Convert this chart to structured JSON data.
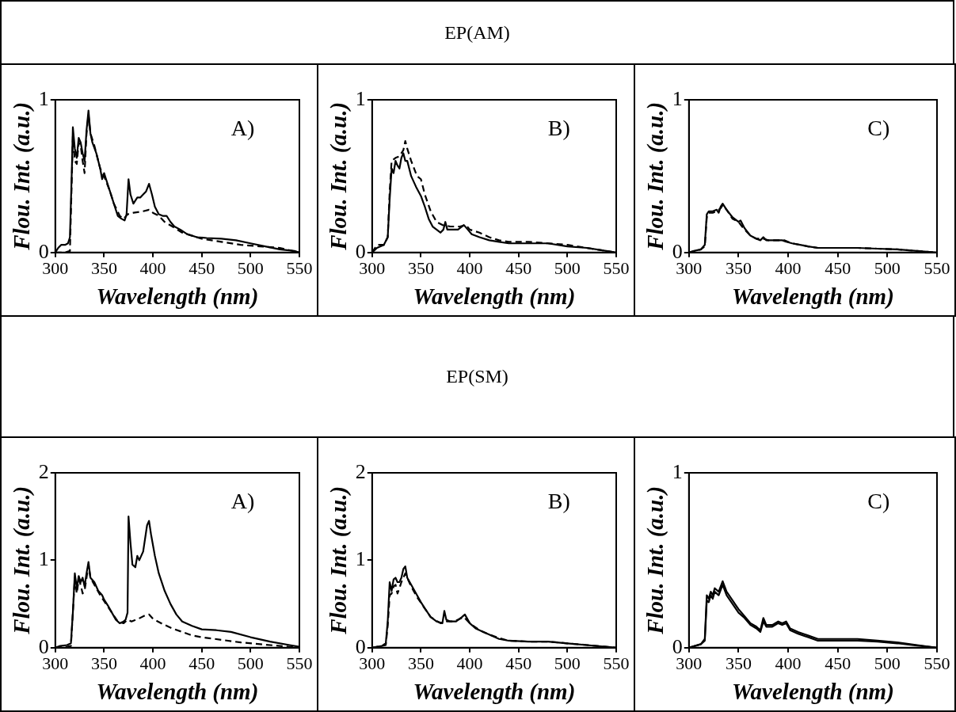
{
  "chart_data": [
    {
      "type": "other",
      "title": "EP(AM)"
    },
    {
      "type": "line",
      "xlabel": "Wavelength (nm)",
      "ylabel": "Flou. Int. (a.u.)",
      "annotations": [
        "A)"
      ],
      "xlim": [
        300,
        550
      ],
      "xticks": [
        300,
        350,
        400,
        450,
        500,
        550
      ],
      "ylim": [
        0,
        1
      ],
      "yticks": [
        0,
        1
      ],
      "grid": false,
      "legend": false,
      "marker": "none",
      "series": [
        {
          "color": "#000000",
          "line_style": "solid",
          "x": [
            300,
            303,
            306,
            310,
            313,
            315,
            317,
            318,
            320,
            322,
            324,
            326,
            328,
            330,
            332,
            334,
            336,
            338,
            342,
            346,
            348,
            350,
            352,
            356,
            360,
            364,
            368,
            371,
            373,
            375,
            377,
            380,
            384,
            387,
            390,
            393,
            396,
            399,
            402,
            406,
            410,
            414,
            418,
            422,
            428,
            435,
            445,
            455,
            470,
            485,
            500,
            515,
            530,
            545,
            550
          ],
          "values": [
            0,
            0.03,
            0.05,
            0.05,
            0.06,
            0.1,
            0.55,
            0.82,
            0.68,
            0.62,
            0.75,
            0.72,
            0.65,
            0.6,
            0.8,
            0.93,
            0.78,
            0.72,
            0.65,
            0.55,
            0.48,
            0.52,
            0.48,
            0.4,
            0.32,
            0.24,
            0.22,
            0.21,
            0.25,
            0.48,
            0.38,
            0.32,
            0.36,
            0.36,
            0.38,
            0.4,
            0.45,
            0.38,
            0.3,
            0.25,
            0.24,
            0.24,
            0.2,
            0.17,
            0.15,
            0.12,
            0.1,
            0.095,
            0.09,
            0.08,
            0.06,
            0.04,
            0.02,
            0.01,
            0
          ]
        },
        {
          "color": "#000000",
          "line_style": "dashed",
          "x": [
            300,
            310,
            315,
            317,
            318,
            320,
            322,
            324,
            326,
            328,
            330,
            332,
            334,
            336,
            340,
            346,
            350,
            356,
            360,
            366,
            370,
            374,
            380,
            390,
            396,
            400,
            406,
            412,
            420,
            430,
            440,
            450,
            470,
            490,
            510,
            530,
            550
          ],
          "values": [
            0,
            0,
            0.01,
            0.5,
            0.76,
            0.6,
            0.58,
            0.72,
            0.7,
            0.6,
            0.52,
            0.78,
            0.9,
            0.78,
            0.7,
            0.55,
            0.5,
            0.4,
            0.32,
            0.24,
            0.22,
            0.25,
            0.26,
            0.27,
            0.28,
            0.26,
            0.24,
            0.2,
            0.17,
            0.13,
            0.11,
            0.09,
            0.07,
            0.05,
            0.04,
            0.03,
            0
          ]
        }
      ]
    },
    {
      "type": "line",
      "xlabel": "Wavelength (nm)",
      "ylabel": "Flou. Int. (a.u.)",
      "annotations": [
        "B)"
      ],
      "xlim": [
        300,
        550
      ],
      "xticks": [
        300,
        350,
        400,
        450,
        500,
        550
      ],
      "ylim": [
        0,
        1
      ],
      "yticks": [
        0,
        1
      ],
      "grid": false,
      "legend": false,
      "marker": "none",
      "series": [
        {
          "color": "#000000",
          "line_style": "solid",
          "x": [
            300,
            305,
            312,
            316,
            318,
            320,
            322,
            324,
            326,
            328,
            330,
            332,
            334,
            336,
            340,
            345,
            350,
            354,
            358,
            362,
            366,
            370,
            373,
            375,
            377,
            382,
            388,
            394,
            398,
            402,
            410,
            420,
            430,
            440,
            460,
            480,
            500,
            520,
            540,
            550
          ],
          "values": [
            0,
            0.03,
            0.05,
            0.1,
            0.35,
            0.55,
            0.52,
            0.6,
            0.57,
            0.55,
            0.62,
            0.65,
            0.6,
            0.6,
            0.5,
            0.43,
            0.37,
            0.3,
            0.22,
            0.17,
            0.15,
            0.13,
            0.15,
            0.2,
            0.15,
            0.15,
            0.15,
            0.18,
            0.15,
            0.12,
            0.1,
            0.08,
            0.07,
            0.06,
            0.06,
            0.06,
            0.04,
            0.03,
            0.01,
            0
          ]
        },
        {
          "color": "#000000",
          "line_style": "dashed",
          "x": [
            300,
            305,
            312,
            316,
            318,
            320,
            324,
            328,
            332,
            334,
            336,
            340,
            346,
            350,
            354,
            360,
            366,
            372,
            380,
            390,
            396,
            400,
            410,
            420,
            430,
            440,
            460,
            480,
            500,
            520,
            540,
            550
          ],
          "values": [
            0,
            0.05,
            0.05,
            0.1,
            0.4,
            0.6,
            0.62,
            0.63,
            0.67,
            0.73,
            0.68,
            0.6,
            0.5,
            0.48,
            0.38,
            0.27,
            0.2,
            0.18,
            0.17,
            0.17,
            0.18,
            0.15,
            0.13,
            0.1,
            0.08,
            0.07,
            0.07,
            0.06,
            0.05,
            0.03,
            0.01,
            0
          ]
        }
      ]
    },
    {
      "type": "line",
      "xlabel": "Wavelength (nm)",
      "ylabel": "Flou. Int. (a.u.)",
      "annotations": [
        "C)"
      ],
      "xlim": [
        300,
        550
      ],
      "xticks": [
        300,
        350,
        400,
        450,
        500,
        550
      ],
      "ylim": [
        0,
        1
      ],
      "yticks": [
        0,
        1
      ],
      "grid": false,
      "legend": false,
      "marker": "none",
      "series": [
        {
          "color": "#000000",
          "line_style": "solid",
          "x": [
            300,
            305,
            312,
            316,
            318,
            320,
            324,
            328,
            330,
            332,
            334,
            338,
            344,
            350,
            352,
            356,
            362,
            368,
            372,
            375,
            378,
            386,
            394,
            398,
            404,
            412,
            420,
            430,
            450,
            470,
            490,
            510,
            530,
            550
          ],
          "values": [
            0,
            0.01,
            0.02,
            0.05,
            0.25,
            0.27,
            0.27,
            0.28,
            0.26,
            0.3,
            0.32,
            0.28,
            0.23,
            0.2,
            0.21,
            0.16,
            0.11,
            0.09,
            0.08,
            0.1,
            0.08,
            0.08,
            0.08,
            0.07,
            0.06,
            0.05,
            0.04,
            0.03,
            0.03,
            0.03,
            0.025,
            0.02,
            0.01,
            0
          ]
        },
        {
          "color": "#000000",
          "line_style": "dashed",
          "x": [
            300,
            312,
            316,
            318,
            320,
            324,
            328,
            332,
            334,
            338,
            344,
            350,
            356,
            362,
            368,
            375,
            380,
            390,
            396,
            404,
            412,
            420,
            430,
            450,
            470,
            490,
            510,
            530,
            550
          ],
          "values": [
            0,
            0.02,
            0.04,
            0.23,
            0.26,
            0.26,
            0.27,
            0.29,
            0.31,
            0.28,
            0.22,
            0.2,
            0.15,
            0.11,
            0.09,
            0.09,
            0.08,
            0.08,
            0.08,
            0.06,
            0.05,
            0.04,
            0.03,
            0.03,
            0.03,
            0.025,
            0.02,
            0.01,
            0
          ]
        }
      ]
    },
    {
      "type": "other",
      "title": "EP(SM)"
    },
    {
      "type": "line",
      "xlabel": "Wavelength (nm)",
      "ylabel": "Flou. Int. (a.u.)",
      "annotations": [
        "A)"
      ],
      "xlim": [
        300,
        550
      ],
      "xticks": [
        300,
        350,
        400,
        450,
        500,
        550
      ],
      "ylim": [
        0,
        2
      ],
      "yticks": [
        0,
        1,
        2
      ],
      "grid": false,
      "legend": false,
      "marker": "none",
      "series": [
        {
          "color": "#000000",
          "line_style": "solid",
          "x": [
            300,
            305,
            312,
            316,
            318,
            320,
            322,
            324,
            326,
            328,
            330,
            332,
            334,
            336,
            340,
            344,
            348,
            350,
            354,
            358,
            362,
            366,
            370,
            372,
            374,
            375,
            377,
            379,
            382,
            384,
            386,
            390,
            394,
            396,
            398,
            402,
            406,
            412,
            418,
            424,
            430,
            440,
            450,
            465,
            480,
            500,
            520,
            540,
            550
          ],
          "values": [
            0,
            0.02,
            0.03,
            0.05,
            0.4,
            0.85,
            0.68,
            0.82,
            0.75,
            0.8,
            0.7,
            0.85,
            0.98,
            0.8,
            0.75,
            0.65,
            0.6,
            0.55,
            0.48,
            0.4,
            0.32,
            0.28,
            0.3,
            0.32,
            0.4,
            1.5,
            1.2,
            0.95,
            0.92,
            1.05,
            1,
            1.1,
            1.4,
            1.45,
            1.3,
            1.05,
            0.85,
            0.65,
            0.5,
            0.38,
            0.3,
            0.25,
            0.21,
            0.2,
            0.18,
            0.12,
            0.07,
            0.03,
            0.01
          ]
        },
        {
          "color": "#000000",
          "line_style": "dashed",
          "x": [
            300,
            312,
            316,
            318,
            320,
            322,
            324,
            326,
            328,
            330,
            332,
            334,
            336,
            340,
            346,
            352,
            358,
            364,
            370,
            374,
            378,
            385,
            392,
            396,
            400,
            410,
            420,
            430,
            440,
            450,
            470,
            490,
            510,
            530,
            550
          ],
          "values": [
            0,
            0.01,
            0.02,
            0.4,
            0.8,
            0.62,
            0.78,
            0.72,
            0.62,
            0.65,
            0.8,
            0.95,
            0.8,
            0.72,
            0.6,
            0.5,
            0.4,
            0.3,
            0.28,
            0.32,
            0.3,
            0.33,
            0.37,
            0.38,
            0.33,
            0.27,
            0.22,
            0.18,
            0.14,
            0.12,
            0.09,
            0.06,
            0.04,
            0.02,
            0
          ]
        }
      ]
    },
    {
      "type": "line",
      "xlabel": "Wavelength (nm)",
      "ylabel": "Flou. Int. (a.u.)",
      "annotations": [
        "B)"
      ],
      "xlim": [
        300,
        550
      ],
      "xticks": [
        300,
        350,
        400,
        450,
        500,
        550
      ],
      "ylim": [
        0,
        2
      ],
      "yticks": [
        0,
        1,
        2
      ],
      "grid": false,
      "legend": false,
      "marker": "none",
      "series": [
        {
          "color": "#000000",
          "line_style": "solid",
          "x": [
            300,
            310,
            314,
            316,
            318,
            320,
            322,
            324,
            326,
            328,
            330,
            332,
            334,
            336,
            340,
            346,
            350,
            354,
            360,
            366,
            372,
            374,
            376,
            380,
            386,
            392,
            395,
            400,
            406,
            414,
            420,
            430,
            440,
            460,
            480,
            500,
            520,
            540,
            550
          ],
          "values": [
            0,
            0.02,
            0.05,
            0.3,
            0.75,
            0.65,
            0.78,
            0.8,
            0.75,
            0.75,
            0.8,
            0.9,
            0.93,
            0.8,
            0.72,
            0.6,
            0.52,
            0.45,
            0.35,
            0.3,
            0.28,
            0.42,
            0.32,
            0.3,
            0.3,
            0.35,
            0.38,
            0.28,
            0.22,
            0.18,
            0.15,
            0.1,
            0.08,
            0.07,
            0.07,
            0.05,
            0.03,
            0.01,
            0
          ]
        },
        {
          "color": "#000000",
          "line_style": "dashed",
          "x": [
            300,
            314,
            316,
            318,
            320,
            322,
            324,
            326,
            328,
            330,
            334,
            336,
            340,
            346,
            352,
            360,
            370,
            376,
            384,
            394,
            400,
            410,
            420,
            430,
            440,
            460,
            480,
            500,
            520,
            550
          ],
          "values": [
            0,
            0.03,
            0.25,
            0.6,
            0.62,
            0.7,
            0.72,
            0.62,
            0.68,
            0.75,
            0.85,
            0.8,
            0.7,
            0.58,
            0.48,
            0.35,
            0.28,
            0.3,
            0.3,
            0.35,
            0.28,
            0.2,
            0.15,
            0.11,
            0.08,
            0.07,
            0.07,
            0.05,
            0.03,
            0
          ]
        }
      ]
    },
    {
      "type": "line",
      "xlabel": "Wavelength (nm)",
      "ylabel": "Flou. Int. (a.u.)",
      "annotations": [
        "C)"
      ],
      "xlim": [
        300,
        550
      ],
      "xticks": [
        300,
        350,
        400,
        450,
        500,
        550
      ],
      "ylim": [
        0,
        1
      ],
      "yticks": [
        0,
        1
      ],
      "grid": false,
      "legend": false,
      "marker": "none",
      "series": [
        {
          "color": "#000000",
          "line_style": "solid",
          "x": [
            300,
            312,
            316,
            318,
            320,
            322,
            324,
            326,
            330,
            334,
            338,
            344,
            350,
            356,
            362,
            368,
            372,
            375,
            378,
            384,
            390,
            394,
            398,
            402,
            410,
            420,
            430,
            450,
            470,
            490,
            510,
            530,
            550
          ],
          "values": [
            0,
            0.02,
            0.05,
            0.3,
            0.28,
            0.32,
            0.3,
            0.34,
            0.32,
            0.38,
            0.32,
            0.27,
            0.22,
            0.18,
            0.14,
            0.12,
            0.1,
            0.17,
            0.13,
            0.13,
            0.15,
            0.14,
            0.15,
            0.11,
            0.09,
            0.07,
            0.05,
            0.05,
            0.05,
            0.04,
            0.03,
            0.015,
            0
          ]
        },
        {
          "color": "#000000",
          "line_style": "solid",
          "x": [
            300,
            312,
            316,
            318,
            320,
            322,
            324,
            326,
            330,
            334,
            338,
            344,
            350,
            356,
            362,
            368,
            372,
            375,
            378,
            384,
            390,
            394,
            398,
            402,
            410,
            420,
            430,
            450,
            470,
            490,
            510,
            530,
            550
          ],
          "values": [
            0,
            0.02,
            0.04,
            0.27,
            0.26,
            0.3,
            0.28,
            0.32,
            0.3,
            0.36,
            0.3,
            0.25,
            0.2,
            0.17,
            0.13,
            0.11,
            0.09,
            0.15,
            0.12,
            0.12,
            0.14,
            0.13,
            0.14,
            0.1,
            0.08,
            0.06,
            0.04,
            0.04,
            0.04,
            0.035,
            0.025,
            0.012,
            0
          ]
        }
      ]
    }
  ]
}
